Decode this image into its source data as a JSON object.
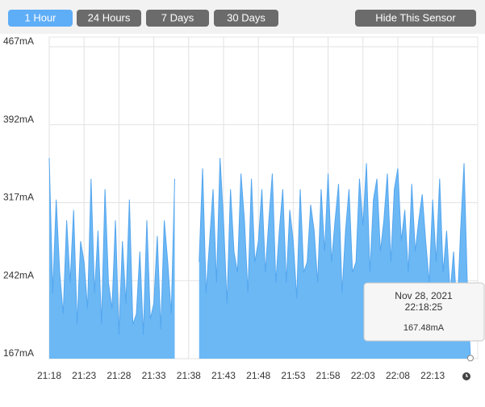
{
  "toolbar": {
    "buttons": [
      "1 Hour",
      "24 Hours",
      "7 Days",
      "30 Days"
    ],
    "active": 0,
    "hide_button": "Hide This Sensor"
  },
  "chart_data": {
    "type": "area",
    "color": "#6bb8f5",
    "grid": true,
    "x": [
      "21:18:00",
      "21:18:30",
      "21:19:00",
      "21:19:30",
      "21:20:00",
      "21:20:30",
      "21:21:00",
      "21:21:30",
      "21:22:00",
      "21:22:30",
      "21:23:00",
      "21:23:30",
      "21:24:00",
      "21:24:30",
      "21:25:00",
      "21:25:30",
      "21:26:00",
      "21:26:30",
      "21:27:00",
      "21:27:30",
      "21:28:00",
      "21:28:30",
      "21:29:00",
      "21:29:30",
      "21:30:00",
      "21:30:30",
      "21:31:00",
      "21:31:30",
      "21:32:00",
      "21:32:30",
      "21:33:00",
      "21:33:30",
      "21:34:00",
      "21:34:30",
      "21:35:00",
      "21:35:30",
      "21:36:00",
      "21:36:30",
      "21:37:00",
      "21:37:30",
      "21:38:00",
      "21:38:30",
      "21:39:00",
      "21:39:30",
      "21:40:00",
      "21:40:30",
      "21:41:00",
      "21:41:30",
      "21:42:00",
      "21:42:30",
      "21:43:00",
      "21:43:30",
      "21:44:00",
      "21:44:30",
      "21:45:00",
      "21:45:30",
      "21:46:00",
      "21:46:30",
      "21:47:00",
      "21:47:30",
      "21:48:00",
      "21:48:30",
      "21:49:00",
      "21:49:30",
      "21:50:00",
      "21:50:30",
      "21:51:00",
      "21:51:30",
      "21:52:00",
      "21:52:30",
      "21:53:00",
      "21:53:30",
      "21:54:00",
      "21:54:30",
      "21:55:00",
      "21:55:30",
      "21:56:00",
      "21:56:30",
      "21:57:00",
      "21:57:30",
      "21:58:00",
      "21:58:30",
      "21:59:00",
      "21:59:30",
      "22:00:00",
      "22:00:30",
      "22:01:00",
      "22:01:30",
      "22:02:00",
      "22:02:30",
      "22:03:00",
      "22:03:30",
      "22:04:00",
      "22:04:30",
      "22:05:00",
      "22:05:30",
      "22:06:00",
      "22:06:30",
      "22:07:00",
      "22:07:30",
      "22:08:00",
      "22:08:30",
      "22:09:00",
      "22:09:30",
      "22:10:00",
      "22:10:30",
      "22:11:00",
      "22:11:30",
      "22:12:00",
      "22:12:30",
      "22:13:00",
      "22:13:30",
      "22:14:00",
      "22:14:30",
      "22:15:00",
      "22:15:30",
      "22:16:00",
      "22:16:30",
      "22:17:00",
      "22:17:30",
      "22:18:00",
      "22:18:25"
    ],
    "values": [
      360,
      230,
      320,
      250,
      210,
      300,
      240,
      310,
      200,
      280,
      260,
      215,
      340,
      230,
      290,
      200,
      330,
      240,
      215,
      300,
      190,
      280,
      220,
      320,
      200,
      210,
      270,
      190,
      300,
      205,
      220,
      285,
      195,
      300,
      260,
      210,
      340,
      null,
      null,
      null,
      null,
      null,
      null,
      260,
      350,
      230,
      280,
      330,
      240,
      360,
      300,
      220,
      330,
      270,
      250,
      345,
      300,
      230,
      340,
      260,
      280,
      330,
      250,
      300,
      345,
      240,
      290,
      330,
      240,
      310,
      280,
      225,
      330,
      250,
      260,
      315,
      290,
      240,
      330,
      270,
      345,
      260,
      300,
      335,
      230,
      290,
      330,
      250,
      260,
      340,
      295,
      355,
      250,
      320,
      340,
      270,
      300,
      345,
      260,
      330,
      350,
      280,
      310,
      250,
      335,
      270,
      300,
      325,
      280,
      240,
      320,
      260,
      340,
      250,
      290,
      230,
      270,
      210,
      290,
      355,
      230,
      167.48
    ],
    "xlim": [
      "21:18:00",
      "22:19:00"
    ],
    "xticks": [
      "21:18",
      "21:23",
      "21:28",
      "21:33",
      "21:38",
      "21:43",
      "21:48",
      "21:53",
      "21:58",
      "22:03",
      "22:08",
      "22:13"
    ],
    "ylim": [
      167,
      467
    ],
    "yticks": [
      {
        "value": 167,
        "label": "167mA"
      },
      {
        "value": 242,
        "label": "242mA"
      },
      {
        "value": 317,
        "label": "317mA"
      },
      {
        "value": 392,
        "label": "392mA"
      },
      {
        "value": 467,
        "label": "467mA"
      }
    ],
    "tooltip": {
      "date": "Nov 28, 2021",
      "time": "22:18:25",
      "label": "167.48mA"
    }
  }
}
